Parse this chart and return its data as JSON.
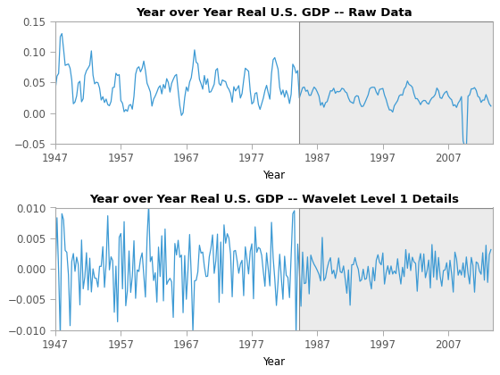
{
  "title1": "Year over Year Real U.S. GDP -- Raw Data",
  "title2": "Year over Year Real U.S. GDP -- Wavelet Level 1 Details",
  "xlabel": "Year",
  "xticks": [
    1947,
    1957,
    1967,
    1977,
    1987,
    1997,
    2007
  ],
  "xlim": [
    1947,
    2013.75
  ],
  "ylim1": [
    -0.05,
    0.15
  ],
  "ylim2": [
    -0.01,
    0.01
  ],
  "yticks1": [
    -0.05,
    0,
    0.05,
    0.1,
    0.15
  ],
  "yticks2": [
    -0.01,
    -0.005,
    0,
    0.005,
    0.01
  ],
  "changepoint_year": 1984.25,
  "shade_color": "#ebebeb",
  "line_color": "#3d9ad4",
  "line_width": 0.9,
  "background_color": "#ffffff",
  "axes_bg": "#ffffff",
  "title_fontsize": 9.5,
  "tick_fontsize": 8.5,
  "tick_color": "#555555",
  "spine_color": "#aaaaaa"
}
